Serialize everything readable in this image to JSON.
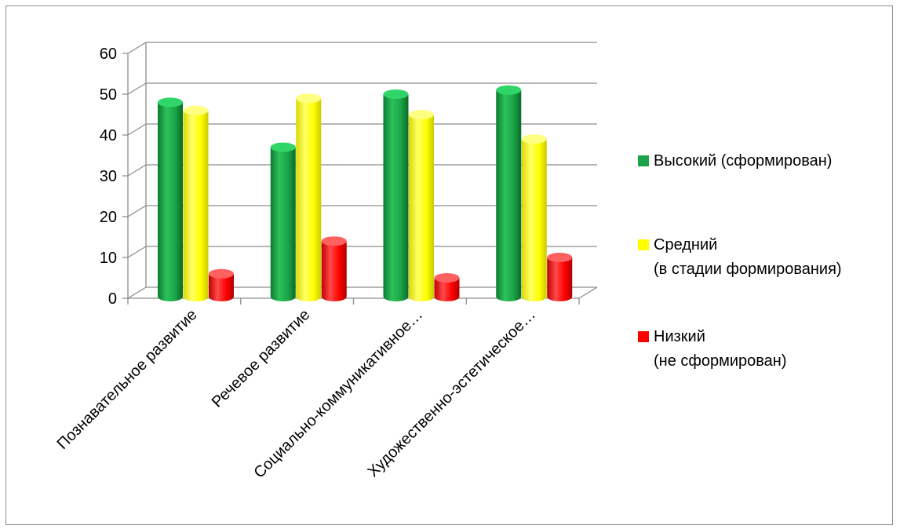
{
  "chart_data": {
    "type": "bar",
    "categories": [
      "Познавательное развитие",
      "Речевое развитие",
      "Социально-коммуникативное…",
      "Художественно-эстетическое…"
    ],
    "series": [
      {
        "name": "Высокий (сформирован)",
        "color": "#1aa447",
        "values": [
          48,
          37,
          50,
          51
        ]
      },
      {
        "name": "Средний\n(в стадии формирования)",
        "color": "#ffff00",
        "values": [
          46,
          49,
          45,
          39
        ]
      },
      {
        "name": "Низкий\n(не сформирован)",
        "color": "#ff0000",
        "values": [
          6,
          14,
          5,
          10
        ]
      }
    ],
    "yticks": [
      "0",
      "10",
      "20",
      "30",
      "40",
      "50",
      "60"
    ],
    "ylim": [
      0,
      60
    ],
    "grid": true,
    "legend_position": "right"
  },
  "legend": {
    "items": [
      {
        "label_line1": "Высокий (сформирован)",
        "label_line2": "",
        "color": "#1aa447"
      },
      {
        "label_line1": "Средний",
        "label_line2": "(в стадии формирования)",
        "color": "#ffff00"
      },
      {
        "label_line1": "Низкий",
        "label_line2": "(не сформирован)",
        "color": "#ff0000"
      }
    ]
  }
}
